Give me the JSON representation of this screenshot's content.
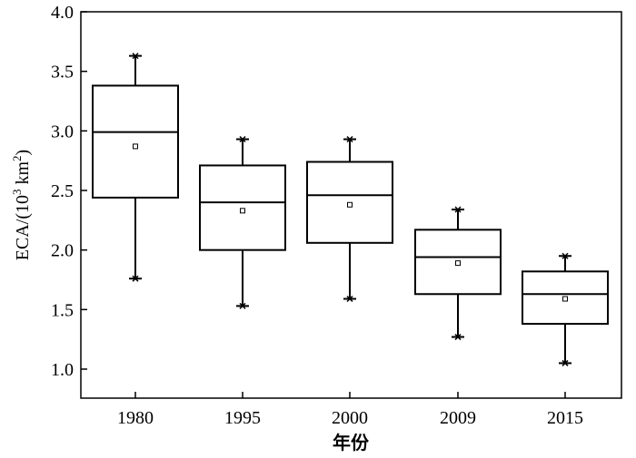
{
  "chart_data": {
    "type": "box",
    "xlabel": "年份",
    "ylabel_main": "ECA/(10",
    "ylabel_exp1": "3",
    "ylabel_unit": " km",
    "ylabel_exp2": "2",
    "ylabel_close": ")",
    "ylim": [
      0.75,
      4.0
    ],
    "yticks": [
      1.0,
      1.5,
      2.0,
      2.5,
      3.0,
      3.5,
      4.0
    ],
    "ytick_labels": [
      "1.0",
      "1.5",
      "2.0",
      "2.5",
      "3.0",
      "3.5",
      "4.0"
    ],
    "categories": [
      "1980",
      "1995",
      "2000",
      "2009",
      "2015"
    ],
    "boxes": [
      {
        "category": "1980",
        "min": 1.76,
        "q1": 2.44,
        "median": 2.99,
        "q3": 3.38,
        "max": 3.63,
        "mean": 2.87
      },
      {
        "category": "1995",
        "min": 1.53,
        "q1": 2.0,
        "median": 2.4,
        "q3": 2.71,
        "max": 2.93,
        "mean": 2.33
      },
      {
        "category": "2000",
        "min": 1.59,
        "q1": 2.06,
        "median": 2.46,
        "q3": 2.74,
        "max": 2.93,
        "mean": 2.38
      },
      {
        "category": "2009",
        "min": 1.27,
        "q1": 1.63,
        "median": 1.94,
        "q3": 2.17,
        "max": 2.34,
        "mean": 1.89
      },
      {
        "category": "2015",
        "min": 1.05,
        "q1": 1.38,
        "median": 1.63,
        "q3": 1.82,
        "max": 1.95,
        "mean": 1.59
      }
    ],
    "grid": false,
    "legend": "none"
  }
}
